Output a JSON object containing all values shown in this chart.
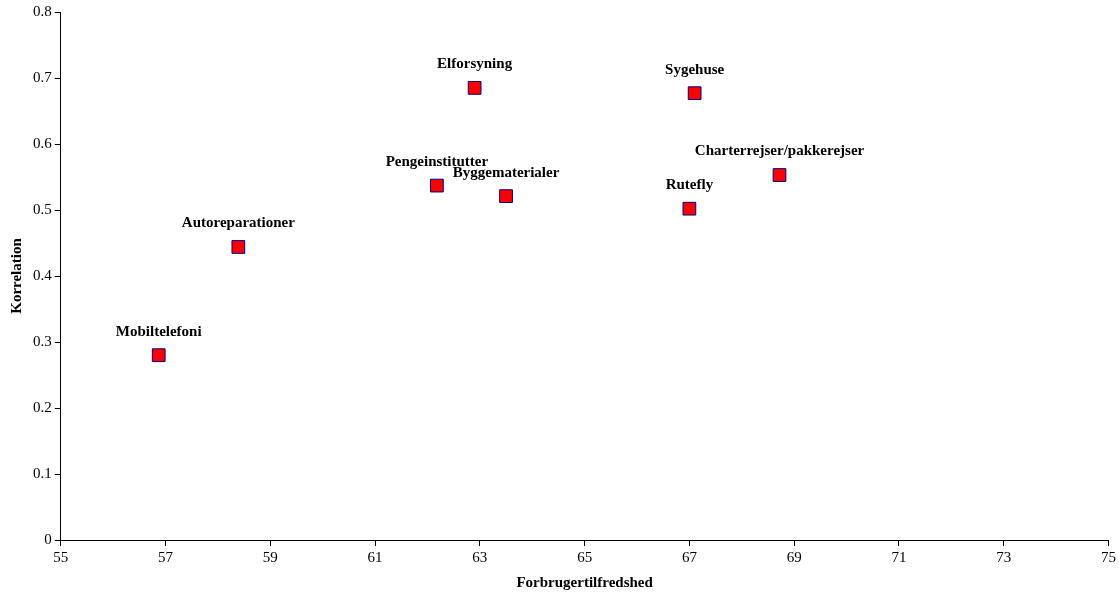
{
  "chart_data": {
    "type": "scatter",
    "xlabel": "Forbrugertilfredshed",
    "ylabel": "Korrelation",
    "x": [
      56.87,
      58.39,
      62.18,
      63.5,
      62.9,
      67.1,
      67.0,
      68.72
    ],
    "series": [
      {
        "color": "#ff0000",
        "values": [
          0.28,
          0.444,
          0.537,
          0.521,
          0.685,
          0.677,
          0.502,
          0.553
        ]
      }
    ],
    "xlim": [
      55,
      75
    ],
    "xticks": [
      55,
      57,
      59,
      61,
      63,
      65,
      67,
      69,
      71,
      73,
      75
    ],
    "ylim": [
      0,
      0.8
    ],
    "yticks": [
      0,
      {
        "value": 0.1,
        "label": "0.1"
      },
      {
        "value": 0.2,
        "label": "0.2"
      },
      {
        "value": 0.3,
        "label": "0.3"
      },
      {
        "value": 0.4,
        "label": "0.4"
      },
      {
        "value": 0.5,
        "label": "0.5"
      },
      {
        "value": 0.6,
        "label": "0.6"
      },
      {
        "value": 0.7,
        "label": "0.7"
      },
      {
        "value": 0.8,
        "label": "0.8"
      }
    ],
    "grid": false,
    "legend": false,
    "marker": "square",
    "annotations": [
      {
        "text": "Mobiltelefoni",
        "x": 56.87,
        "y": 0.28
      },
      {
        "text": "Autoreparationer",
        "x": 58.39,
        "y": 0.444
      },
      {
        "text": "Pengeinstitutter",
        "x": 62.18,
        "y": 0.537
      },
      {
        "text": "Byggematerialer",
        "x": 63.5,
        "y": 0.521
      },
      {
        "text": "Elforsyning",
        "x": 62.9,
        "y": 0.685
      },
      {
        "text": "Sygehuse",
        "x": 67.1,
        "y": 0.677
      },
      {
        "text": "Rutefly",
        "x": 67.0,
        "y": 0.502
      },
      {
        "text": "Charterrejser/pakkerejser",
        "x": 68.72,
        "y": 0.553
      }
    ]
  }
}
